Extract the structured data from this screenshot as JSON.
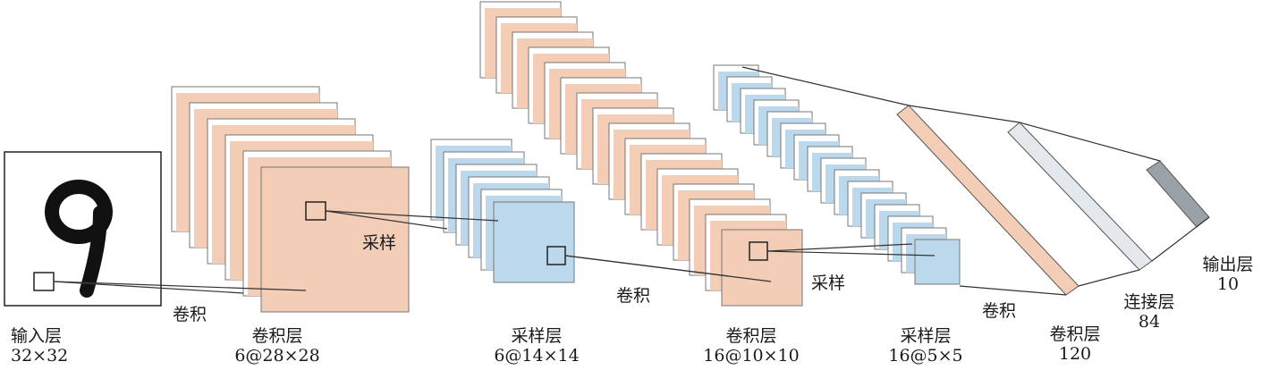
{
  "diagram": {
    "colors": {
      "conv": "#f3cdb6",
      "pool": "#bcd8ec",
      "fc": "#e2e8ec",
      "output": "#9aa1a8",
      "line": "#333333"
    },
    "layers": {
      "input": {
        "name": "输入层",
        "size": "32×32"
      },
      "conv1": {
        "name": "卷积层",
        "size": "6@28×28"
      },
      "pool1": {
        "name": "采样层",
        "size": "6@14×14"
      },
      "conv2": {
        "name": "卷积层",
        "size": "16@10×10"
      },
      "pool2": {
        "name": "采样层",
        "size": "16@5×5"
      },
      "conv3": {
        "name": "卷积层",
        "size": "120"
      },
      "fc": {
        "name": "连接层",
        "size": "84"
      },
      "output": {
        "name": "输出层",
        "size": "10"
      }
    },
    "operations": {
      "op1": "卷积",
      "op2": "采样",
      "op3": "卷积",
      "op4": "采样",
      "op5": "卷积"
    }
  }
}
